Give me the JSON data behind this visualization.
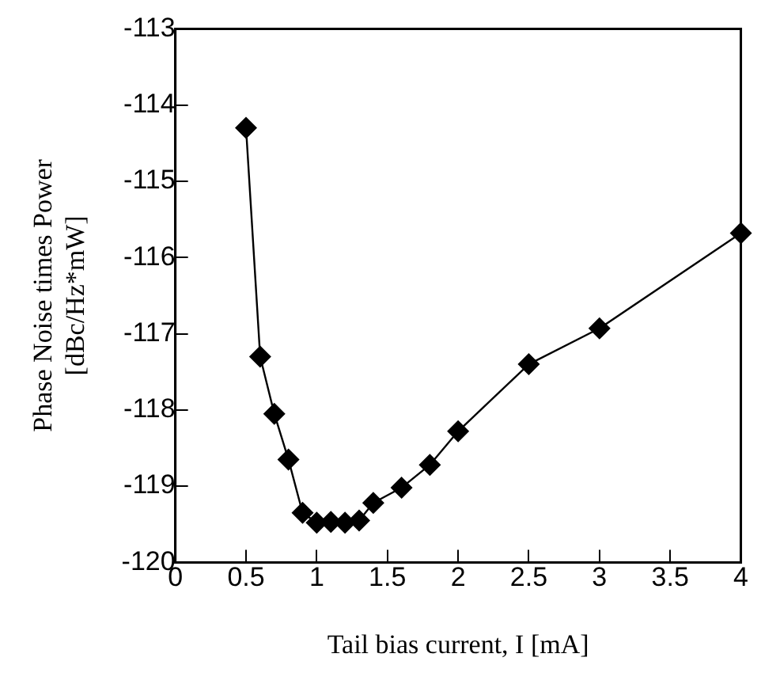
{
  "chart_data": {
    "type": "line",
    "xlabel": "Tail bias current, I [mA]",
    "ylabel": "Phase Noise times Power\n[dBc/Hz*mW]",
    "x": [
      0.5,
      0.6,
      0.7,
      0.8,
      0.9,
      1.0,
      1.1,
      1.2,
      1.3,
      1.4,
      1.6,
      1.8,
      2.0,
      2.5,
      3.0,
      4.0
    ],
    "series": [
      {
        "color": "#000000",
        "values": [
          -114.3,
          -117.3,
          -118.05,
          -118.65,
          -119.35,
          -119.48,
          -119.47,
          -119.48,
          -119.45,
          -119.22,
          -119.02,
          -118.72,
          -118.28,
          -117.4,
          -116.93,
          -115.68
        ]
      }
    ],
    "xlim": [
      0,
      4
    ],
    "xticks": [
      0,
      0.5,
      1,
      1.5,
      2,
      2.5,
      3,
      3.5,
      4
    ],
    "ylim": [
      -120,
      -113
    ],
    "yticks": [
      -120,
      -119,
      -118,
      -117,
      -116,
      -115,
      -114,
      -113
    ],
    "grid": false,
    "legend": false,
    "marker": "diamond",
    "line_style": "solid"
  }
}
